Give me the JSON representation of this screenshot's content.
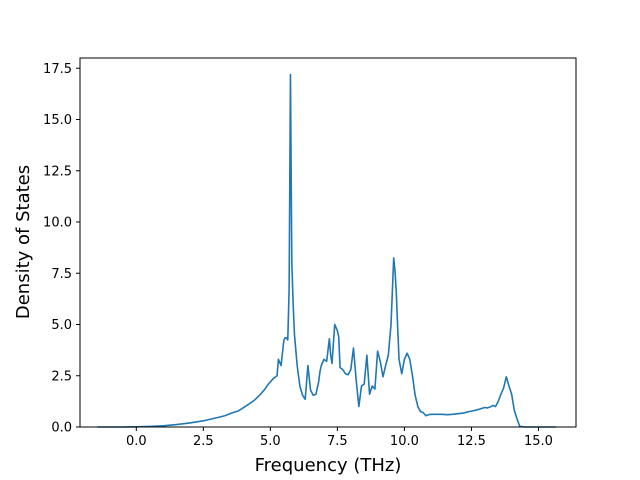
{
  "chart_data": {
    "type": "line",
    "title": "",
    "xlabel": "Frequency (THz)",
    "ylabel": "Density of States",
    "xlim": [
      -2.1,
      16.4
    ],
    "ylim": [
      0.0,
      18.0
    ],
    "grid": false,
    "legend": "none",
    "xticks": [
      0.0,
      2.5,
      5.0,
      7.5,
      10.0,
      12.5,
      15.0
    ],
    "xtick_labels": [
      "0.0",
      "2.5",
      "5.0",
      "7.5",
      "10.0",
      "12.5",
      "15.0"
    ],
    "yticks": [
      0.0,
      2.5,
      5.0,
      7.5,
      10.0,
      12.5,
      15.0,
      17.5
    ],
    "ytick_labels": [
      "0.0",
      "2.5",
      "5.0",
      "7.5",
      "10.0",
      "12.5",
      "15.0",
      "17.5"
    ],
    "series": [
      {
        "color": "#1f77b4",
        "x": [
          -1.45,
          -1.0,
          -0.5,
          0.0,
          0.5,
          1.0,
          1.5,
          2.0,
          2.5,
          3.0,
          3.3,
          3.6,
          3.8,
          4.0,
          4.2,
          4.4,
          4.6,
          4.8,
          4.9,
          5.0,
          5.1,
          5.15,
          5.25,
          5.3,
          5.4,
          5.5,
          5.55,
          5.6,
          5.65,
          5.7,
          5.75,
          5.8,
          5.85,
          5.9,
          6.0,
          6.1,
          6.2,
          6.3,
          6.4,
          6.5,
          6.6,
          6.7,
          6.8,
          6.85,
          6.9,
          7.0,
          7.1,
          7.2,
          7.25,
          7.3,
          7.4,
          7.5,
          7.55,
          7.6,
          7.7,
          7.8,
          7.9,
          8.0,
          8.1,
          8.2,
          8.3,
          8.4,
          8.5,
          8.6,
          8.7,
          8.8,
          8.9,
          9.0,
          9.1,
          9.2,
          9.3,
          9.4,
          9.5,
          9.55,
          9.6,
          9.65,
          9.7,
          9.75,
          9.8,
          9.9,
          10.0,
          10.1,
          10.2,
          10.3,
          10.4,
          10.5,
          10.6,
          10.7,
          10.8,
          10.9,
          11.0,
          11.2,
          11.4,
          11.6,
          11.8,
          12.0,
          12.2,
          12.4,
          12.6,
          12.8,
          13.0,
          13.1,
          13.2,
          13.3,
          13.4,
          13.5,
          13.6,
          13.7,
          13.8,
          13.9,
          14.0,
          14.1,
          14.2,
          14.3,
          14.5,
          15.0,
          15.65
        ],
        "y": [
          0.0,
          0.0,
          0.0,
          0.01,
          0.03,
          0.06,
          0.12,
          0.2,
          0.3,
          0.45,
          0.55,
          0.7,
          0.78,
          0.95,
          1.12,
          1.3,
          1.55,
          1.85,
          2.05,
          2.2,
          2.35,
          2.4,
          2.5,
          3.3,
          3.0,
          4.2,
          4.35,
          4.35,
          4.25,
          6.7,
          17.2,
          8.0,
          6.0,
          4.5,
          3.0,
          2.0,
          1.55,
          1.35,
          3.0,
          1.8,
          1.55,
          1.6,
          2.2,
          2.7,
          3.0,
          3.3,
          3.2,
          4.3,
          3.5,
          3.1,
          5.0,
          4.7,
          4.4,
          2.9,
          2.8,
          2.6,
          2.55,
          2.8,
          3.85,
          2.3,
          1.0,
          2.0,
          2.1,
          3.5,
          1.6,
          2.0,
          1.85,
          3.7,
          3.2,
          2.45,
          3.0,
          3.5,
          5.0,
          6.6,
          8.25,
          7.6,
          6.5,
          4.8,
          3.3,
          2.6,
          3.3,
          3.6,
          3.3,
          2.5,
          1.55,
          1.0,
          0.75,
          0.7,
          0.55,
          0.6,
          0.62,
          0.62,
          0.62,
          0.6,
          0.62,
          0.65,
          0.68,
          0.75,
          0.8,
          0.87,
          0.95,
          0.93,
          0.98,
          1.05,
          1.0,
          1.25,
          1.6,
          1.9,
          2.45,
          2.0,
          1.6,
          0.8,
          0.4,
          0.03,
          0.0,
          0.0,
          0.0
        ]
      }
    ]
  }
}
